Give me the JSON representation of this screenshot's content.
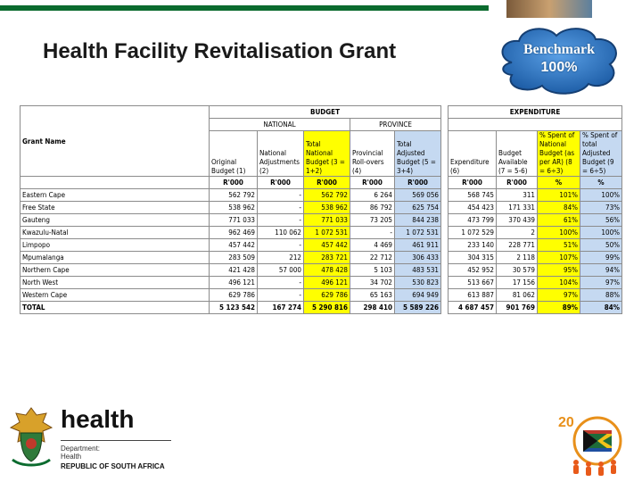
{
  "slide": {
    "title": "Health Facility Revitalisation Grant",
    "benchmark_label": "Benchmark",
    "benchmark_value": "100%"
  },
  "table": {
    "group_budget": "BUDGET",
    "group_expenditure": "EXPENDITURE",
    "sub_national": "NATIONAL",
    "sub_province": "PROVINCE",
    "grant_name_label": "Grant Name",
    "budget_headers": [
      "Original Budget (1)",
      "National Adjustments (2)",
      "Total National Budget (3 = 1+2)",
      "Provincial Roll-overs (4)",
      "Total Adjusted Budget (5 = 3+4)"
    ],
    "expenditure_headers": [
      "Expenditure (6)",
      "Budget Available (7 = 5-6)",
      "% Spent of National Budget (as per AR) (8 = 6÷3)",
      "% Spent of total Adjusted Budget (9 = 6÷5)"
    ],
    "units_budget": [
      "R'000",
      "R'000",
      "R'000",
      "R'000",
      "R'000"
    ],
    "units_expenditure": [
      "R'000",
      "R'000",
      "%",
      "%"
    ],
    "rows": [
      {
        "name": "Eastern Cape",
        "b": [
          "562 792",
          "-",
          "562 792",
          "6 264",
          "569 056"
        ],
        "e": [
          "568 745",
          "311",
          "101%",
          "100%"
        ]
      },
      {
        "name": "Free State",
        "b": [
          "538 962",
          "-",
          "538 962",
          "86 792",
          "625 754"
        ],
        "e": [
          "454 423",
          "171 331",
          "84%",
          "73%"
        ]
      },
      {
        "name": "Gauteng",
        "b": [
          "771 033",
          "-",
          "771 033",
          "73 205",
          "844 238"
        ],
        "e": [
          "473 799",
          "370 439",
          "61%",
          "56%"
        ]
      },
      {
        "name": "Kwazulu-Natal",
        "b": [
          "962 469",
          "110 062",
          "1 072 531",
          "-",
          "1 072 531"
        ],
        "e": [
          "1 072 529",
          "2",
          "100%",
          "100%"
        ]
      },
      {
        "name": "Limpopo",
        "b": [
          "457 442",
          "-",
          "457 442",
          "4 469",
          "461 911"
        ],
        "e": [
          "233 140",
          "228 771",
          "51%",
          "50%"
        ]
      },
      {
        "name": "Mpumalanga",
        "b": [
          "283 509",
          "212",
          "283 721",
          "22 712",
          "306 433"
        ],
        "e": [
          "304 315",
          "2 118",
          "107%",
          "99%"
        ]
      },
      {
        "name": "Northern Cape",
        "b": [
          "421 428",
          "57 000",
          "478 428",
          "5 103",
          "483 531"
        ],
        "e": [
          "452 952",
          "30 579",
          "95%",
          "94%"
        ]
      },
      {
        "name": "North West",
        "b": [
          "496 121",
          "-",
          "496 121",
          "34 702",
          "530 823"
        ],
        "e": [
          "513 667",
          "17 156",
          "104%",
          "97%"
        ]
      },
      {
        "name": "Western Cape",
        "b": [
          "629 786",
          "-",
          "629 786",
          "65 163",
          "694 949"
        ],
        "e": [
          "613 887",
          "81 062",
          "97%",
          "88%"
        ]
      }
    ],
    "total": {
      "name": "TOTAL",
      "b": [
        "5 123 542",
        "167 274",
        "5 290 816",
        "298 410",
        "5 589 226"
      ],
      "e": [
        "4 687 457",
        "901 769",
        "89%",
        "84%"
      ]
    }
  },
  "footer": {
    "health_word": "health",
    "dept_line1": "Department:",
    "dept_line2": "Health",
    "country": "REPUBLIC OF SOUTH AFRICA"
  },
  "colors": {
    "header_green": "#0b6b2e",
    "highlight_yellow": "#ffff00",
    "highlight_blue": "#c5d9f1",
    "benchmark_blue": "#1f6fc4"
  },
  "icons": [
    "coat-of-arms-icon",
    "anniversary-logo-icon"
  ]
}
